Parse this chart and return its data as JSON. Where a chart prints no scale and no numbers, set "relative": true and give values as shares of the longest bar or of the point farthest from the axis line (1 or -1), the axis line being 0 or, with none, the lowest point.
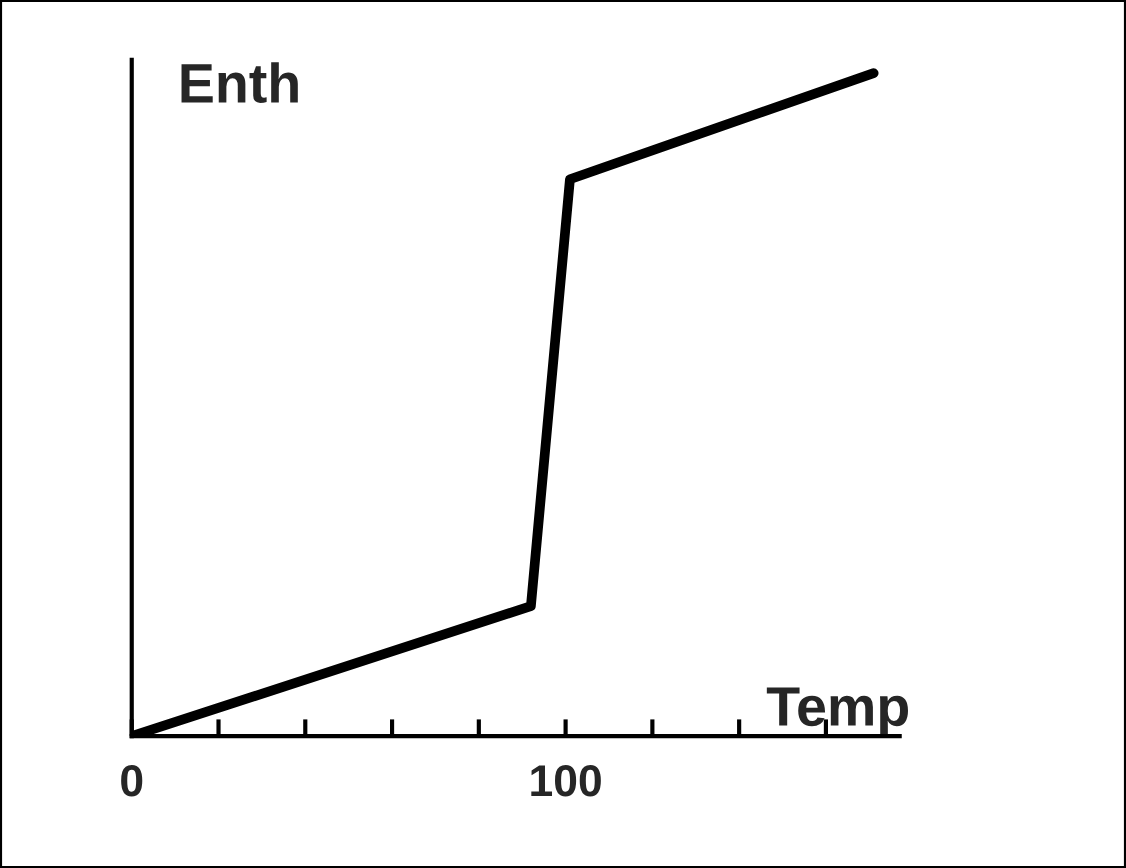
{
  "chart_data": {
    "type": "line",
    "xlabel": "Temp",
    "ylabel": "Enth",
    "relative": true,
    "x": [
      0,
      92,
      101,
      171
    ],
    "series": [
      {
        "color": "#000000",
        "values": [
          0,
          0.196,
          0.84,
          1
        ]
      }
    ],
    "xlim": [
      0,
      177
    ],
    "xticks": [
      {
        "value": 0,
        "label": "0"
      },
      {
        "value": 20,
        "label": null
      },
      {
        "value": 40,
        "label": null
      },
      {
        "value": 60,
        "label": null
      },
      {
        "value": 80,
        "label": null
      },
      {
        "value": 100,
        "label": "100"
      },
      {
        "value": 120,
        "label": null
      },
      {
        "value": 140,
        "label": null
      },
      {
        "value": 160,
        "label": null
      }
    ],
    "grid": false,
    "legend": false,
    "marker": "none",
    "line_style": "solid"
  }
}
